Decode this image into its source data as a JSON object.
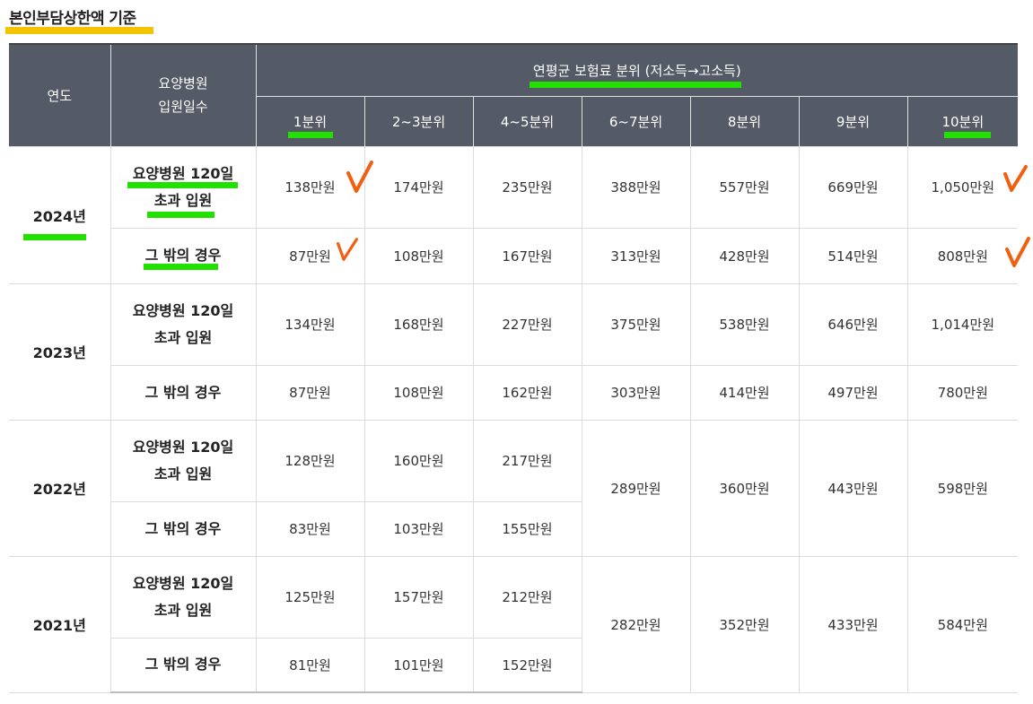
{
  "title": "본인부담상한액 기준",
  "header": {
    "year": "연도",
    "stay": "요양병원\n입원일수",
    "group": "연평균 보험료 분위 (저소득→고소득)",
    "deciles": [
      "1분위",
      "2~3분위",
      "4~5분위",
      "6~7분위",
      "8분위",
      "9분위",
      "10분위"
    ]
  },
  "rows": [
    {
      "year": "2024년",
      "over_label": "요양병원 120일\n초과 입원",
      "other_label": "그 밖의 경우",
      "over": [
        "138만원",
        "174만원",
        "235만원",
        "388만원",
        "557만원",
        "669만원",
        "1,050만원"
      ],
      "other": [
        "87만원",
        "108만원",
        "167만원",
        "313만원",
        "428만원",
        "514만원",
        "808만원"
      ]
    },
    {
      "year": "2023년",
      "over_label": "요양병원 120일\n초과 입원",
      "other_label": "그 밖의 경우",
      "over": [
        "134만원",
        "168만원",
        "227만원",
        "375만원",
        "538만원",
        "646만원",
        "1,014만원"
      ],
      "other": [
        "87만원",
        "108만원",
        "162만원",
        "303만원",
        "414만원",
        "497만원",
        "780만원"
      ]
    },
    {
      "year": "2022년",
      "over_label": "요양병원 120일\n초과 입원",
      "other_label": "그 밖의 경우",
      "over": [
        "128만원",
        "160만원",
        "217만원"
      ],
      "other": [
        "83만원",
        "103만원",
        "155만원"
      ],
      "shared": [
        "289만원",
        "360만원",
        "443만원",
        "598만원"
      ]
    },
    {
      "year": "2021년",
      "over_label": "요양병원 120일\n초과 입원",
      "other_label": "그 밖의 경우",
      "over": [
        "125만원",
        "157만원",
        "212만원"
      ],
      "other": [
        "81만원",
        "101만원",
        "152만원"
      ],
      "shared": [
        "282만원",
        "352만원",
        "433만원",
        "584만원"
      ]
    }
  ],
  "colors": {
    "header_bg": "#545b66",
    "highlight_green": "#22e000",
    "highlight_yellow": "#f5c400",
    "check": "#f06010"
  }
}
